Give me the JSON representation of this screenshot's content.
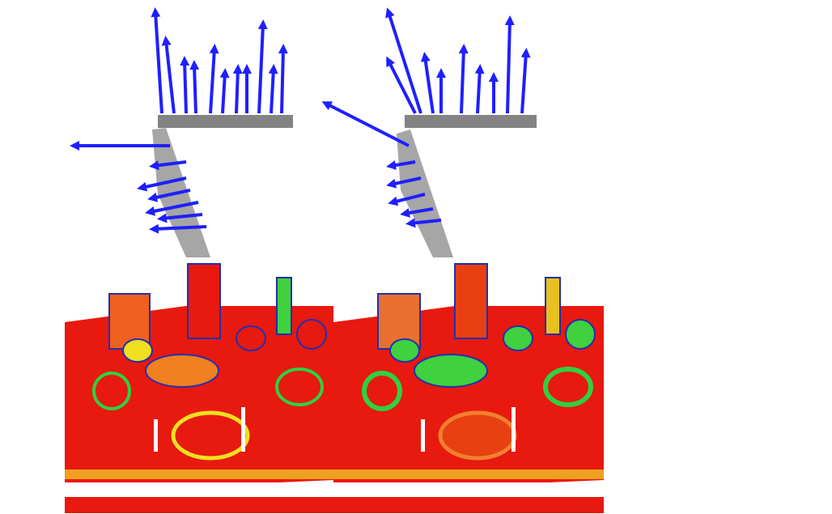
{
  "figure": {
    "panels": [
      {
        "id": "normals-left",
        "content": "point-cloud-normals"
      },
      {
        "id": "normals-right",
        "content": "point-cloud-normals"
      },
      {
        "id": "heatmap-left",
        "content": "curvature-heatmap"
      },
      {
        "id": "heatmap-right",
        "content": "curvature-heatmap"
      }
    ],
    "colors": {
      "arrow": "#1f1fff",
      "points": "#555555",
      "heat_high": "#e8190f",
      "heat_mid": "#f0e020",
      "heat_low": "#30d040",
      "edge": "#2030b0",
      "background": "#ffffff"
    }
  }
}
